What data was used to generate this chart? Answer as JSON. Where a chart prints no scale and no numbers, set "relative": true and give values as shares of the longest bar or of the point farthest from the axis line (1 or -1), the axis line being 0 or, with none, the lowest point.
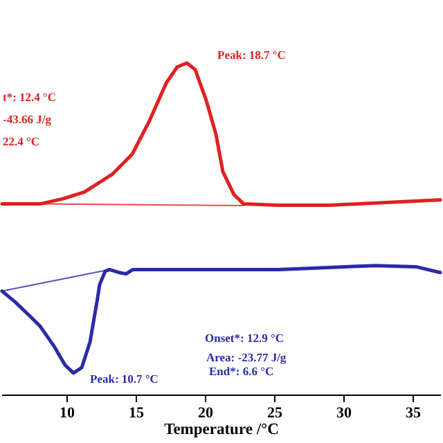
{
  "chart_data": {
    "type": "line",
    "relative": true,
    "xlabel": "Temperature /°C",
    "xlim": [
      5.3,
      37
    ],
    "xticks": [
      10,
      15,
      20,
      25,
      30,
      35
    ],
    "series": [
      {
        "color": "#e0201f",
        "x": [
          5.35,
          8.1,
          9.8,
          11.3,
          13.3,
          14.75,
          16.0,
          17.2,
          18.0,
          18.7,
          19.3,
          20.1,
          20.8,
          21.3,
          22.1,
          22.8,
          25.3,
          29.0,
          37
        ],
        "values": [
          0.575,
          0.575,
          0.591,
          0.611,
          0.664,
          0.725,
          0.826,
          0.939,
          0.988,
          1.0,
          0.98,
          0.887,
          0.785,
          0.672,
          0.603,
          0.575,
          0.571,
          0.571,
          0.587
        ]
      },
      {
        "color": "#e0201f",
        "x": [
          8.1,
          22.8
        ],
        "values": [
          0.575,
          0.57
        ]
      },
      {
        "color": "#2a2aa8",
        "x": [
          5.35,
          6.3,
          7.3,
          8.1,
          9.1,
          9.9,
          10.5,
          11.1,
          11.7,
          12.2,
          12.4,
          12.8,
          13.1,
          13.8,
          14.3,
          14.8,
          18.3,
          25.3,
          32.3,
          35.3,
          37
        ],
        "values": [
          0.312,
          0.279,
          0.239,
          0.206,
          0.146,
          0.089,
          0.065,
          0.081,
          0.158,
          0.279,
          0.332,
          0.372,
          0.377,
          0.368,
          0.364,
          0.377,
          0.377,
          0.377,
          0.389,
          0.385,
          0.368
        ]
      },
      {
        "color": "#2a2aa8",
        "x": [
          5.35,
          13.1
        ],
        "values": [
          0.312,
          0.377
        ]
      }
    ],
    "annotations": [
      {
        "text": "Peak: 18.7 °C",
        "x": 18.7,
        "y": 1.0
      },
      "t*: 12.4 °C",
      "-43.66 J/g",
      "22.4 °C",
      "Onset*: 12.9 °C",
      "Area: -23.77 J/g",
      "End*: 6.6 °C",
      {
        "text": "Peak: 10.7 °C",
        "x": 10.7,
        "y": 0.065
      }
    ]
  }
}
